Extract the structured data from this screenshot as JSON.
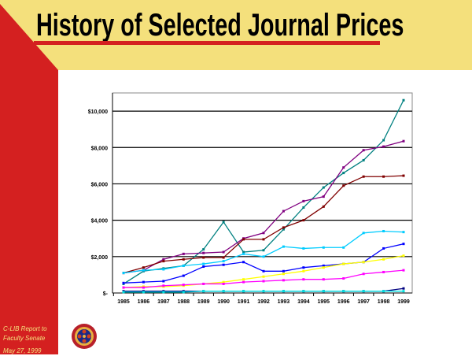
{
  "slide": {
    "title": "History of Selected Journal Prices",
    "footer": [
      "C-LIB Report to",
      "Faculty Senate",
      "May 27, 1999"
    ],
    "colors": {
      "band": "#f4e07c",
      "accent": "#d42020"
    },
    "logo": "seal-emblem"
  },
  "chart_data": {
    "type": "line",
    "title": "",
    "xlabel": "",
    "ylabel": "",
    "ylim": [
      0,
      11000
    ],
    "grid": "horizontal",
    "legend": "none",
    "y_ticks": [
      {
        "value": 0,
        "label": "$-"
      },
      {
        "value": 2000,
        "label": "$2,000"
      },
      {
        "value": 4000,
        "label": "$4,000"
      },
      {
        "value": 6000,
        "label": "$6,000"
      },
      {
        "value": 8000,
        "label": "$8,000"
      },
      {
        "value": 10000,
        "label": "$10,000"
      }
    ],
    "categories": [
      "1985",
      "1986",
      "1987",
      "1988",
      "1989",
      "1990",
      "1991",
      "1992",
      "1993",
      "1994",
      "1995",
      "1996",
      "1997",
      "1998",
      "1999"
    ],
    "series": [
      {
        "color": "#008080",
        "values": [
          500,
          1200,
          1350,
          1500,
          2400,
          3900,
          2250,
          2350,
          3500,
          4700,
          5800,
          6600,
          7300,
          8400,
          10600
        ]
      },
      {
        "color": "#800080",
        "values": [
          1100,
          1250,
          1850,
          2150,
          2200,
          2250,
          3000,
          3300,
          4500,
          5050,
          5300,
          6900,
          7850,
          8050,
          8350
        ]
      },
      {
        "color": "#800000",
        "values": [
          1100,
          1400,
          1750,
          1850,
          1950,
          1950,
          2950,
          2950,
          3600,
          4000,
          4750,
          5900,
          6400,
          6400,
          6450
        ]
      },
      {
        "color": "#00ccff",
        "values": [
          1100,
          1250,
          1300,
          1500,
          1600,
          1750,
          2150,
          2000,
          2550,
          2450,
          2500,
          2500,
          3300,
          3400,
          3350
        ]
      },
      {
        "color": "#0000ff",
        "values": [
          550,
          600,
          650,
          950,
          1450,
          1550,
          1700,
          1200,
          1200,
          1400,
          1500,
          1600,
          1700,
          2450,
          2700
        ]
      },
      {
        "color": "#ffff00",
        "values": [
          300,
          350,
          350,
          400,
          500,
          600,
          750,
          900,
          1050,
          1200,
          1400,
          1600,
          1700,
          1850,
          2050
        ]
      },
      {
        "color": "#ff00ff",
        "values": [
          300,
          300,
          400,
          450,
          500,
          500,
          600,
          650,
          700,
          750,
          750,
          800,
          1050,
          1150,
          1250
        ]
      },
      {
        "color": "#000080",
        "values": [
          100,
          100,
          100,
          100,
          100,
          100,
          100,
          100,
          100,
          100,
          100,
          100,
          100,
          100,
          250
        ]
      },
      {
        "color": "#00e0e0",
        "values": [
          50,
          50,
          50,
          50,
          100,
          100,
          100,
          100,
          100,
          100,
          100,
          100,
          100,
          100,
          100
        ]
      }
    ]
  }
}
